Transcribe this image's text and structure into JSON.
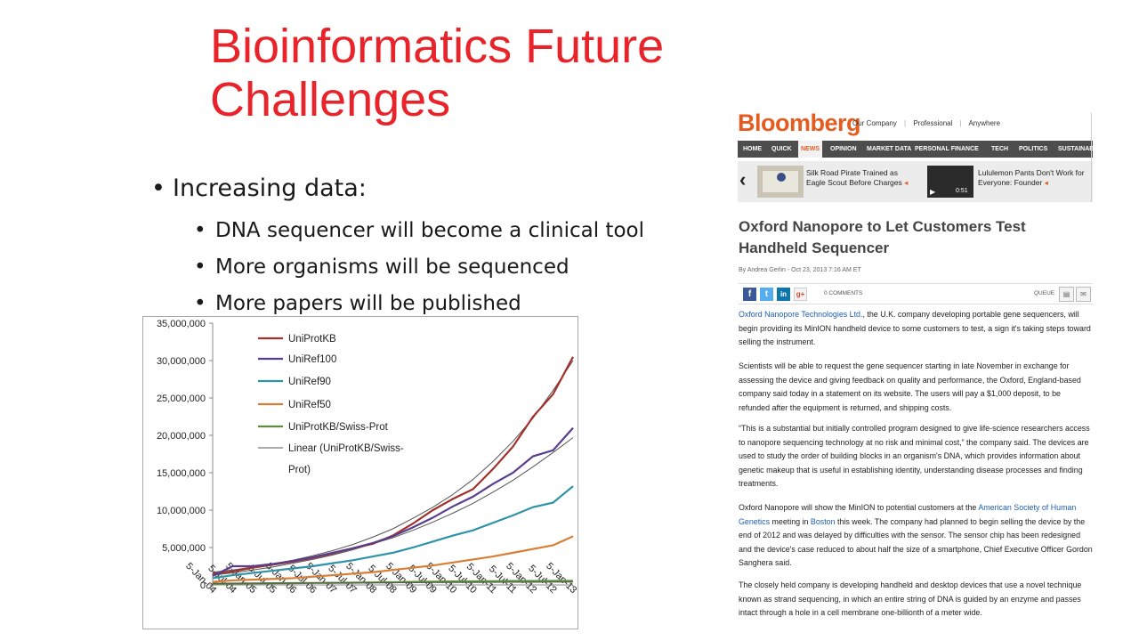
{
  "slide": {
    "title_line1": "Bioinformatics Future",
    "title_line2": "Challenges",
    "bullet_main": "Increasing data:",
    "bullet_glyph": "•",
    "sub_bullets": [
      "DNA sequencer will become a clinical tool",
      "More organisms will be sequenced",
      "More papers will be published"
    ]
  },
  "chart_data": {
    "type": "line",
    "y_ticks": [
      "35,000,000",
      "30,000,000",
      "25,000,000",
      "20,000,000",
      "15,000,000",
      "10,000,000",
      "5,000,000",
      "0"
    ],
    "ylim": [
      0,
      35000000
    ],
    "x_ticks": [
      "5-Jan-04",
      "5-Jul-04",
      "5-Jan-05",
      "5-Jul-05",
      "5-Jan-06",
      "5-Jul-06",
      "5-Jan-07",
      "5-Jul-07",
      "5-Jan-08",
      "5-Jul-08",
      "5-Jan-09",
      "5-Jul-09",
      "5-Jan-10",
      "5-Jul-10",
      "5-Jan-11",
      "5-Jul-11",
      "5-Jan-12",
      "5-Jul-12",
      "5-Jan-13"
    ],
    "legend": [
      "UniProtKB",
      "UniRef100",
      "UniRef90",
      "UniRef50",
      "UniProtKB/Swiss-Prot",
      "Linear (UniProtKB/Swiss-",
      "Prot)"
    ],
    "legend_placement": "top-left",
    "grid": false,
    "series": [
      {
        "name": "UniProtKB",
        "color": "#a0312b",
        "x_index": [
          0,
          1,
          2,
          3,
          4,
          5,
          6,
          7,
          8,
          9,
          10,
          11,
          12,
          13,
          14,
          15,
          16,
          17,
          18
        ],
        "values": [
          1500000,
          1800000,
          2300000,
          2700000,
          3100000,
          3600000,
          4200000,
          4900000,
          5500000,
          6600000,
          8200000,
          10000000,
          11500000,
          12800000,
          15500000,
          18500000,
          22500000,
          25500000,
          30500000
        ]
      },
      {
        "name": "UniRef100",
        "color": "#5a3e8e",
        "x_index": [
          0,
          1,
          2,
          3,
          4,
          5,
          6,
          7,
          8,
          9,
          10,
          11,
          12,
          13,
          14,
          15,
          16,
          17,
          18
        ],
        "values": [
          1200000,
          2500000,
          2500000,
          2800000,
          3200000,
          3700000,
          4300000,
          4900000,
          5600000,
          6500000,
          7700000,
          9000000,
          10500000,
          11800000,
          13500000,
          15000000,
          17200000,
          18000000,
          21000000
        ]
      },
      {
        "name": "UniRef90",
        "color": "#2f93a8",
        "x_index": [
          0,
          1,
          2,
          3,
          4,
          5,
          6,
          7,
          8,
          9,
          10,
          11,
          12,
          13,
          14,
          15,
          16,
          17,
          18
        ],
        "values": [
          900000,
          1300000,
          1600000,
          1900000,
          2200000,
          2500000,
          2900000,
          3300000,
          3800000,
          4300000,
          5000000,
          5800000,
          6600000,
          7300000,
          8300000,
          9300000,
          10400000,
          11000000,
          13200000
        ]
      },
      {
        "name": "UniRef50",
        "color": "#d77f34",
        "x_index": [
          0,
          1,
          2,
          3,
          4,
          5,
          6,
          7,
          8,
          9,
          10,
          11,
          12,
          13,
          14,
          15,
          16,
          17,
          18
        ],
        "values": [
          400000,
          600000,
          700000,
          800000,
          900000,
          1100000,
          1300000,
          1500000,
          1700000,
          2000000,
          2300000,
          2600000,
          3000000,
          3400000,
          3800000,
          4300000,
          4800000,
          5300000,
          6500000
        ]
      },
      {
        "name": "UniProtKB/Swiss-Prot",
        "color": "#5f8f3a",
        "x_index": [
          0,
          1,
          2,
          3,
          4,
          5,
          6,
          7,
          8,
          9,
          10,
          11,
          12,
          13,
          14,
          15,
          16,
          17,
          18
        ],
        "values": [
          150000,
          180000,
          200000,
          220000,
          240000,
          260000,
          280000,
          300000,
          330000,
          360000,
          400000,
          430000,
          460000,
          480000,
          500000,
          520000,
          530000,
          535000,
          540000
        ]
      },
      {
        "name": "Linear (UniProtKB/Swiss-Prot)",
        "color": "#555555",
        "x_index": [
          0,
          1,
          2,
          3,
          4,
          5,
          6,
          7,
          8,
          9,
          10,
          11,
          12,
          13,
          14,
          15,
          16,
          17,
          18
        ],
        "values": [
          200000,
          210000,
          220000,
          230000,
          240000,
          250000,
          260000,
          270000,
          280000,
          290000,
          300000,
          310000,
          320000,
          330000,
          340000,
          350000,
          360000,
          370000,
          380000
        ]
      }
    ],
    "trend_curves": [
      {
        "follows": "UniProtKB",
        "color": "#555555",
        "values": [
          1700000,
          2000000,
          2400000,
          2800000,
          3300000,
          3900000,
          4600000,
          5400000,
          6400000,
          7500000,
          8900000,
          10400000,
          12100000,
          14100000,
          16500000,
          19200000,
          22300000,
          26000000,
          30000000
        ]
      },
      {
        "follows": "UniRef100",
        "color": "#555555",
        "values": [
          1300000,
          1600000,
          2000000,
          2400000,
          2900000,
          3400000,
          4000000,
          4700000,
          5500000,
          6300000,
          7300000,
          8400000,
          9600000,
          10900000,
          12400000,
          14000000,
          15800000,
          17700000,
          19700000
        ]
      }
    ]
  },
  "article": {
    "logo": "Bloomberg",
    "top_links": [
      "Our Company",
      "|",
      "Professional",
      "|",
      "Anywhere"
    ],
    "nav": [
      "HOME",
      "QUICK",
      "NEWS",
      "OPINION",
      "MARKET DATA",
      "PERSONAL FINANCE",
      "TECH",
      "POLITICS",
      "SUSTAINAB"
    ],
    "active_nav": "NEWS",
    "strip_arrow": "‹",
    "story1": [
      "Silk Road Pirate Trained as",
      "Eagle Scout Before Charges"
    ],
    "story2": [
      "Lululemon Pants Don't Work for",
      "Everyone: Founder"
    ],
    "story_marker": "◂",
    "video_play": "▶",
    "video_duration": "0:51",
    "headline_line1": "Oxford Nanopore to Let Customers Test",
    "headline_line2": "Handheld Sequencer",
    "byline": "By Andrea Gerlin - Oct 23, 2013 7:16 AM ET",
    "social": {
      "facebook": "f",
      "twitter": "t",
      "linkedin": "in",
      "google": "g+",
      "comments": "0 COMMENTS",
      "queue": "QUEUE"
    },
    "p1_link": "Oxford Nanopore Technologies Ltd.",
    "p1_rest": ", the U.K. company developing portable gene sequencers, will begin providing its MinION handheld device to some customers to test, a sign it's taking steps toward selling the instrument.",
    "p2": "Scientists will be able to request the gene sequencer starting in late November in exchange for assessing the device and giving feedback on quality and performance, the Oxford, England-based company said today in a statement on its website. The users will pay a $1,000 deposit, to be refunded after the equipment is returned, and shipping costs.",
    "p3": "“This is a substantial but initially controlled program designed to give life-science researchers access to nanopore sequencing technology at no risk and minimal cost,” the company said. The devices are used to study the order of building blocks in an organism's DNA, which provides information about genetic makeup that is useful in establishing identity, understanding disease processes and finding treatments.",
    "p4_a": "Oxford Nanopore will show the MinION to potential customers at the ",
    "p4_link1": "American Society of Human Genetics",
    "p4_b": " meeting in ",
    "p4_link2": "Boston",
    "p4_c": " this week. The company had planned to begin selling the device by the end of 2012 and was delayed by difficulties with the sensor. The sensor chip has been redesigned and the device's case reduced to about half the size of a smartphone, Chief Executive Officer Gordon Sanghera said.",
    "p5": "The closely held company is developing handheld and desktop devices that use a novel technique known as strand sequencing, in which an entire string of DNA is guided by an enzyme and passes intact through a hole in a cell membrane one-billionth of a meter wide."
  }
}
